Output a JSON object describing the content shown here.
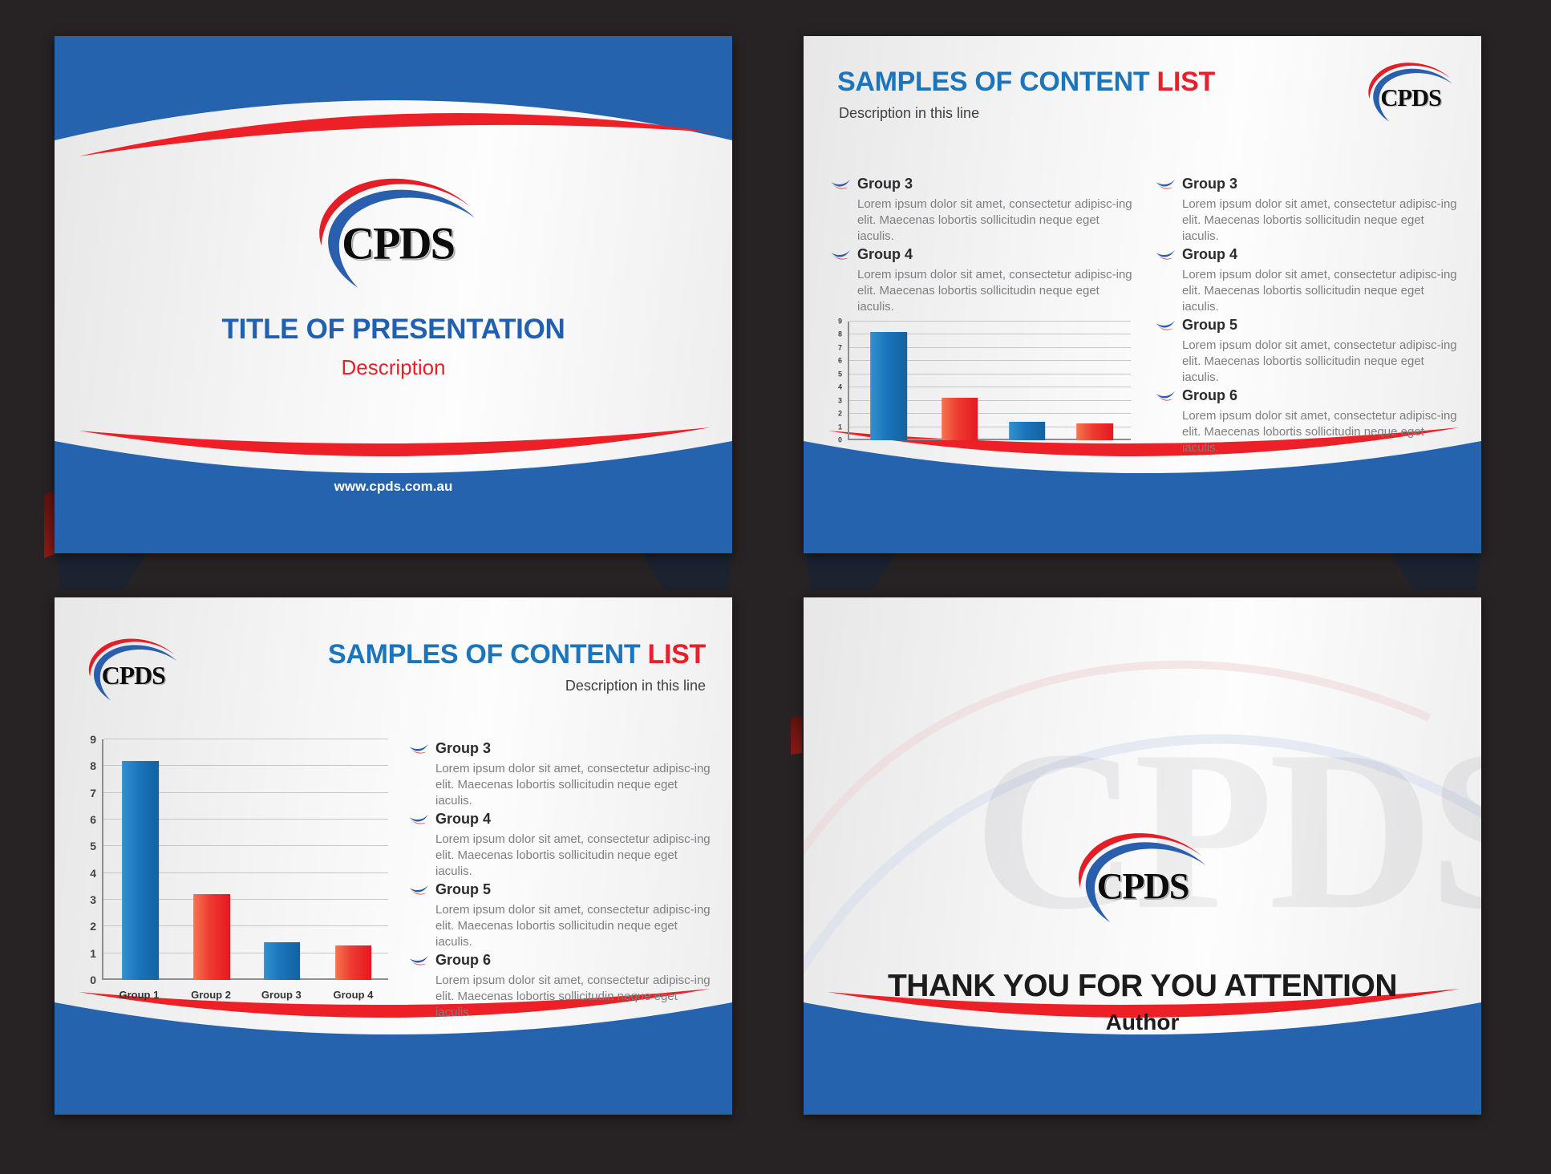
{
  "palette": {
    "background": "#272223",
    "band_blue": "#2563ae",
    "accent_red": "#ec2026",
    "title_blue": "#1b75bc",
    "bar_blue": "#1b75bc",
    "bar_red": "#e9222a",
    "body_gray": "#7d7e82"
  },
  "chart_data": [
    {
      "type": "bar",
      "title": "",
      "xlabel": "",
      "ylabel": "",
      "categories": [
        "",
        "",
        "",
        ""
      ],
      "values": [
        8.2,
        3.2,
        1.4,
        1.3
      ],
      "bar_colors": [
        "blue",
        "red",
        "blue",
        "red"
      ],
      "ylim": [
        0,
        9
      ],
      "grid": true,
      "legend": "none",
      "layout": {
        "centers": [
          0.14,
          0.392,
          0.632,
          0.872
        ],
        "bar_width": 0.13
      }
    },
    {
      "type": "bar",
      "title": "",
      "xlabel": "",
      "ylabel": "",
      "categories": [
        "Group 1",
        "Group 2",
        "Group 3",
        "Group 4"
      ],
      "values": [
        8.2,
        3.2,
        1.4,
        1.3
      ],
      "bar_colors": [
        "blue",
        "red",
        "blue",
        "red"
      ],
      "ylim": [
        0,
        9
      ],
      "grid": true,
      "legend": "none",
      "layout": {
        "centers": [
          0.13,
          0.381,
          0.627,
          0.878
        ],
        "bar_width": 0.129
      }
    }
  ],
  "slide1": {
    "logo_text": "CPDS",
    "title": "TITLE OF PRESENTATION",
    "subtitle": "Description",
    "footer": "www.cpds.com.au"
  },
  "slide2": {
    "logo_text": "CPDS",
    "title_main": "SAMPLES OF CONTENT",
    "title_accent": "LIST",
    "subtitle": "Description in this line",
    "items_left": [
      {
        "heading": "Group 3",
        "body": "Lorem ipsum dolor sit amet, consectetur adipisc-ing elit. Maecenas lobortis sollicitudin neque eget iaculis."
      },
      {
        "heading": "Group 4",
        "body": "Lorem ipsum dolor sit amet, consectetur adipisc-ing elit. Maecenas lobortis sollicitudin neque eget iaculis."
      }
    ],
    "items_right": [
      {
        "heading": "Group 3",
        "body": "Lorem ipsum dolor sit amet, consectetur adipisc-ing elit. Maecenas lobortis sollicitudin neque eget iaculis."
      },
      {
        "heading": "Group 4",
        "body": "Lorem ipsum dolor sit amet, consectetur adipisc-ing elit. Maecenas lobortis sollicitudin neque eget iaculis."
      },
      {
        "heading": "Group 5",
        "body": "Lorem ipsum dolor sit amet, consectetur adipisc-ing elit. Maecenas lobortis sollicitudin neque eget iaculis."
      },
      {
        "heading": "Group 6",
        "body": "Lorem ipsum dolor sit amet, consectetur adipisc-ing elit. Maecenas lobortis sollicitudin neque eget iaculis."
      }
    ]
  },
  "slide3": {
    "logo_text": "CPDS",
    "title_main": "SAMPLES OF CONTENT",
    "title_accent": "LIST",
    "subtitle": "Description in this line",
    "items_right": [
      {
        "heading": "Group 3",
        "body": "Lorem ipsum dolor sit amet, consectetur adipisc-ing elit. Maecenas lobortis sollicitudin neque eget iaculis."
      },
      {
        "heading": "Group 4",
        "body": "Lorem ipsum dolor sit amet, consectetur adipisc-ing elit. Maecenas lobortis sollicitudin neque eget iaculis."
      },
      {
        "heading": "Group 5",
        "body": "Lorem ipsum dolor sit amet, consectetur adipisc-ing elit. Maecenas lobortis sollicitudin neque eget iaculis."
      },
      {
        "heading": "Group 6",
        "body": "Lorem ipsum dolor sit amet, consectetur adipisc-ing elit. Maecenas lobortis sollicitudin neque eget iaculis."
      }
    ]
  },
  "slide4": {
    "logo_text": "CPDS",
    "watermark": "CPDS",
    "title": "THANK YOU FOR YOU ATTENTION",
    "author": "Author"
  }
}
